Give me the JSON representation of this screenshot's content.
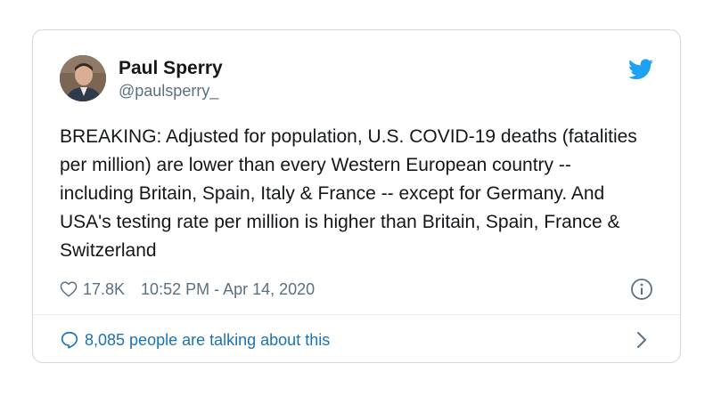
{
  "author": {
    "name": "Paul Sperry",
    "handle": "@paulsperry_"
  },
  "tweet": {
    "text": "BREAKING: Adjusted for population, U.S. COVID-19 deaths (fatalities per million) are lower than every Western European country -- including Britain, Spain, Italy & France -- except for Germany. And USA's testing rate per million is higher than Britain, Spain, France & Switzerland"
  },
  "stats": {
    "likes": "17.8K",
    "timestamp": "10:52 PM - Apr 14, 2020"
  },
  "footer": {
    "talking": "8,085 people are talking about this"
  },
  "icons": {
    "brand": "twitter-bird-icon",
    "like": "heart-icon",
    "info": "info-icon",
    "comment": "comment-icon",
    "chevron": "chevron-right-icon"
  },
  "colors": {
    "brand_blue": "#1da1f2",
    "link_blue": "#1b73b3",
    "secondary_text": "#5b7083",
    "primary_text": "#14171a",
    "border": "#cfd9de"
  }
}
